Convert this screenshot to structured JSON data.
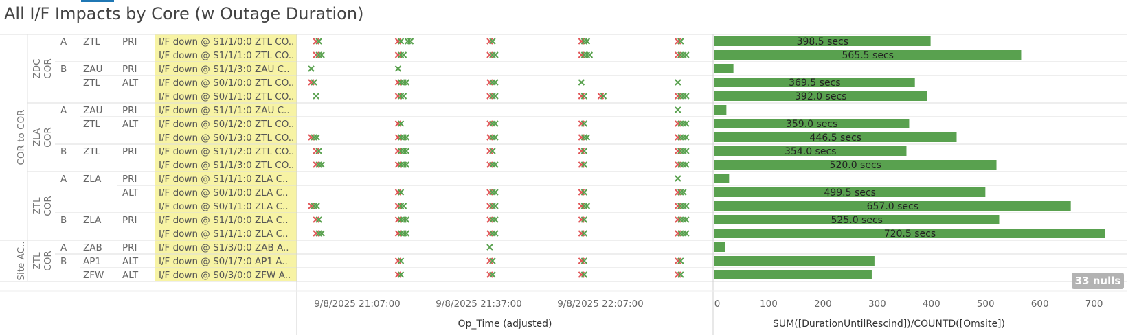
{
  "title": "All I/F Impacts by Core (w Outage Duration)",
  "nulls_badge": "33 nulls",
  "scatter_axis": {
    "title": "Op_Time (adjusted)",
    "ticks": [
      "9/8/2025 21:07:00",
      "9/8/2025 21:37:00",
      "9/8/2025 22:07:00"
    ]
  },
  "bar_axis": {
    "title": "SUM([DurationUntilRescind])/COUNTD([Omsite])",
    "ticks": [
      0,
      100,
      200,
      300,
      400,
      500,
      600,
      700
    ]
  },
  "colors": {
    "mark_red": "#e15759",
    "mark_green": "#59a14f",
    "bar": "#59a14f",
    "highlight": "#f7f3a4"
  },
  "groups": [
    {
      "label": "COR to COR",
      "start": 0,
      "end": 14
    },
    {
      "label": "Site AC..",
      "start": 15,
      "end": 17
    }
  ],
  "cores": [
    {
      "label": "ZDC COR",
      "start": 0,
      "end": 4
    },
    {
      "label": "ZLA COR",
      "start": 5,
      "end": 9
    },
    {
      "label": "ZTL COR",
      "start": 10,
      "end": 14
    },
    {
      "label": "ZTL COR",
      "start": 15,
      "end": 17
    }
  ],
  "chart_data": {
    "type": "bar",
    "categories": [
      "I/F down @ S1/1/0:0 ZTL CO..",
      "I/F down @ S1/1/1:0 ZTL CO..",
      "I/F down @ S1/1/3:0 ZAU C..",
      "I/F down @ S0/1/0:0 ZTL CO..",
      "I/F down @ S0/1/1:0 ZTL CO..",
      "I/F down @ S1/1/1:0 ZAU C..",
      "I/F down @ S0/1/2:0 ZTL CO..",
      "I/F down @ S0/1/3:0 ZTL CO..",
      "I/F down @ S1/1/2:0 ZTL CO..",
      "I/F down @ S1/1/3:0 ZTL CO..",
      "I/F down @ S1/1/1:0 ZLA C..",
      "I/F down @ S0/1/0:0 ZLA C..",
      "I/F down @ S0/1/1:0 ZLA C..",
      "I/F down @ S1/1/0:0 ZLA C..",
      "I/F down @ S1/1/1:0 ZLA C..",
      "I/F down @ S1/3/0:0 ZAB A..",
      "I/F down @ S0/1/7:0 AP1 A..",
      "I/F down @ S0/3/0:0 ZFW A.."
    ],
    "rows": [
      {
        "side": "A",
        "site": "ZTL",
        "role": "PRI"
      },
      {
        "side": "",
        "site": "",
        "role": ""
      },
      {
        "side": "B",
        "site": "ZAU",
        "role": "PRI"
      },
      {
        "side": "",
        "site": "ZTL",
        "role": "ALT"
      },
      {
        "side": "",
        "site": "",
        "role": ""
      },
      {
        "side": "A",
        "site": "ZAU",
        "role": "PRI"
      },
      {
        "side": "",
        "site": "ZTL",
        "role": "ALT"
      },
      {
        "side": "",
        "site": "",
        "role": ""
      },
      {
        "side": "B",
        "site": "ZTL",
        "role": "PRI"
      },
      {
        "side": "",
        "site": "",
        "role": ""
      },
      {
        "side": "A",
        "site": "ZLA",
        "role": "PRI"
      },
      {
        "side": "",
        "site": "",
        "role": "ALT"
      },
      {
        "side": "",
        "site": "",
        "role": ""
      },
      {
        "side": "B",
        "site": "ZLA",
        "role": "PRI"
      },
      {
        "side": "",
        "site": "",
        "role": ""
      },
      {
        "side": "A",
        "site": "ZAB",
        "role": "PRI"
      },
      {
        "side": "B",
        "site": "AP1",
        "role": "ALT"
      },
      {
        "side": "",
        "site": "ZFW",
        "role": "ALT"
      }
    ],
    "values": [
      398.5,
      565.5,
      35,
      369.5,
      392.0,
      22,
      359.0,
      446.5,
      354.0,
      520.0,
      27,
      499.5,
      657.0,
      525.0,
      720.5,
      20,
      295,
      290
    ],
    "value_labels": [
      "398.5 secs",
      "565.5 secs",
      "",
      "369.5 secs",
      "392.0 secs",
      "",
      "359.0 secs",
      "446.5 secs",
      "354.0 secs",
      "520.0 secs",
      "",
      "499.5 secs",
      "657.0 secs",
      "525.0 secs",
      "720.5 secs",
      "",
      "",
      ""
    ],
    "xlim": [
      0,
      760
    ],
    "xlabel": "SUM([DurationUntilRescind])/COUNTD([Omsite])",
    "scatter": {
      "xlabel": "Op_Time (adjusted)",
      "xlim_minutes_from_first_tick": [
        -10,
        76
      ],
      "tick_minutes": [
        0,
        30,
        60
      ],
      "clusters": [
        -6,
        11,
        30,
        49,
        69,
        86
      ],
      "rows_marks": [
        [
          [
            -6,
            "rg"
          ],
          [
            11,
            "rg"
          ],
          [
            13,
            "gg"
          ],
          [
            30,
            "rg"
          ],
          [
            49,
            "rgg"
          ],
          [
            69,
            "rg"
          ],
          [
            86,
            "rgg"
          ]
        ],
        [
          [
            -6,
            "rgg"
          ],
          [
            11,
            "rgg"
          ],
          [
            30,
            "rgg"
          ],
          [
            49,
            "rggg"
          ],
          [
            69,
            "rggg"
          ],
          [
            86,
            "rgg"
          ]
        ],
        [
          [
            -7,
            "g"
          ],
          [
            11,
            "g"
          ]
        ],
        [
          [
            -7,
            "rg"
          ],
          [
            11,
            "rggg"
          ],
          [
            30,
            "rgg"
          ],
          [
            49,
            "g"
          ],
          [
            69,
            "g"
          ],
          [
            86,
            "rgg"
          ]
        ],
        [
          [
            -6,
            "g"
          ],
          [
            11,
            "rgg"
          ],
          [
            30,
            "rgg"
          ],
          [
            49,
            "rg"
          ],
          [
            53,
            "rg"
          ],
          [
            69,
            "rggg"
          ],
          [
            86,
            "rgg"
          ]
        ],
        [
          [
            69,
            "g"
          ]
        ],
        [
          [
            11,
            "rg"
          ],
          [
            30,
            "rgg"
          ],
          [
            49,
            "rg"
          ],
          [
            69,
            "rggg"
          ],
          [
            86,
            "rg"
          ]
        ],
        [
          [
            -7,
            "rgg"
          ],
          [
            11,
            "rggg"
          ],
          [
            30,
            "rgg"
          ],
          [
            49,
            "rgg"
          ],
          [
            69,
            "rggg"
          ],
          [
            86,
            "rgg"
          ]
        ],
        [
          [
            -6,
            "rg"
          ],
          [
            11,
            "rggg"
          ],
          [
            30,
            "rg"
          ],
          [
            49,
            "rg"
          ],
          [
            69,
            "rggg"
          ],
          [
            86,
            "rgg"
          ]
        ],
        [
          [
            -6,
            "rgg"
          ],
          [
            11,
            "rggg"
          ],
          [
            30,
            "rgg"
          ],
          [
            49,
            "rg"
          ],
          [
            69,
            "rggg"
          ],
          [
            86,
            "rgg"
          ]
        ],
        [
          [
            69,
            "g"
          ]
        ],
        [
          [
            11,
            "rg"
          ],
          [
            30,
            "rgg"
          ],
          [
            49,
            "rg"
          ],
          [
            69,
            "rgg"
          ],
          [
            86,
            "rgg"
          ]
        ],
        [
          [
            -7,
            "rgg"
          ],
          [
            11,
            "rgg"
          ],
          [
            30,
            "rgg"
          ],
          [
            49,
            "rgg"
          ],
          [
            69,
            "rggg"
          ],
          [
            86,
            "rggg"
          ]
        ],
        [
          [
            -6,
            "rg"
          ],
          [
            11,
            "rggg"
          ],
          [
            30,
            "rgg"
          ],
          [
            49,
            "rg"
          ],
          [
            69,
            "rggg"
          ],
          [
            86,
            "rgg"
          ]
        ],
        [
          [
            -6,
            "rgg"
          ],
          [
            11,
            "rggg"
          ],
          [
            30,
            "rgg"
          ],
          [
            49,
            "rg"
          ],
          [
            69,
            "rggg"
          ],
          [
            86,
            "rgg"
          ]
        ],
        [
          [
            30,
            "g"
          ]
        ],
        [
          [
            11,
            "rg"
          ],
          [
            30,
            "rg"
          ],
          [
            49,
            "rg"
          ],
          [
            69,
            "rg"
          ],
          [
            86,
            "rgg"
          ]
        ],
        [
          [
            11,
            "rg"
          ],
          [
            30,
            "rg"
          ],
          [
            49,
            "rg"
          ],
          [
            69,
            "rg"
          ],
          [
            86,
            "rgg"
          ]
        ]
      ]
    }
  }
}
